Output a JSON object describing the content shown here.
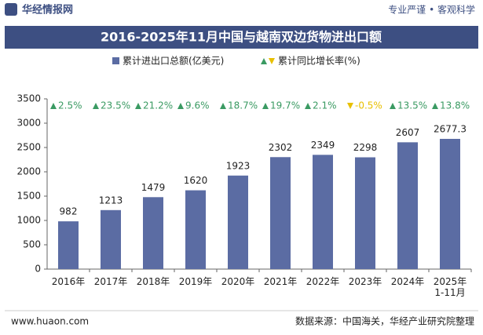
{
  "header": {
    "logo": "华经情报网",
    "slogan": "专业严谨 • 客观科学"
  },
  "chart_data": {
    "type": "bar",
    "title": "2016-2025年11月中国与越南双边货物进出口额",
    "categories": [
      "2016年",
      "2017年",
      "2018年",
      "2019年",
      "2020年",
      "2021年",
      "2022年",
      "2023年",
      "2024年",
      "2025年\n1-11月"
    ],
    "series": [
      {
        "name": "累计进出口总额(亿美元)",
        "color": "#5b6ca3",
        "values": [
          982,
          1213,
          1479,
          1620,
          1923,
          2302,
          2349,
          2298,
          2607,
          2677.3
        ]
      },
      {
        "name": "累计同比增长率(%)",
        "color": "#3a9a62",
        "negative_color": "#e8c000",
        "values": [
          2.5,
          23.5,
          21.2,
          9.6,
          18.7,
          19.7,
          2.1,
          -0.5,
          13.5,
          13.8
        ],
        "value_labels": [
          "2.5%",
          "23.5%",
          "21.2%",
          "9.6%",
          "18.7%",
          "19.7%",
          "2.1%",
          "-0.5%",
          "13.5%",
          "13.8%"
        ]
      }
    ],
    "ylim": [
      0,
      3500
    ],
    "yticks": [
      0,
      500,
      1000,
      1500,
      2000,
      2500,
      3000,
      3500
    ]
  },
  "footer": {
    "website": "www.huaon.com",
    "source": "数据来源：中国海关，华经产业研究院整理"
  }
}
